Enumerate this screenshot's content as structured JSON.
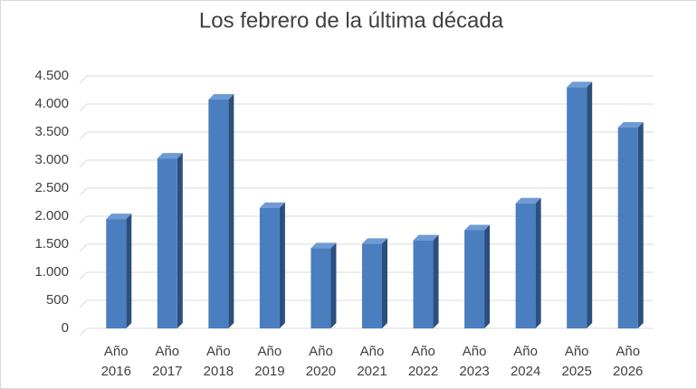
{
  "chart_data": {
    "type": "bar3d",
    "title": "Los febrero de la última década",
    "categories": [
      "Año 2016",
      "Año 2017",
      "Año 2018",
      "Año 2019",
      "Año 2020",
      "Año 2021",
      "Año 2022",
      "Año 2023",
      "Año 2024",
      "Año 2025",
      "Año 2026"
    ],
    "values": [
      1950,
      3030,
      4080,
      2150,
      1430,
      1510,
      1570,
      1750,
      2230,
      4300,
      3580
    ],
    "color": "#4a7ebf",
    "ylim": [
      0,
      4500
    ],
    "yticks": [
      0,
      500,
      {
        "value": 1000,
        "label": "1.000"
      },
      {
        "value": 1500,
        "label": "1.500"
      },
      {
        "value": 2000,
        "label": "2.000"
      },
      {
        "value": 2500,
        "label": "2.500"
      },
      {
        "value": 3000,
        "label": "3.000"
      },
      {
        "value": 3500,
        "label": "3.500"
      },
      {
        "value": 4000,
        "label": "4.000"
      },
      {
        "value": 4500,
        "label": "4.500"
      }
    ],
    "grid": true
  }
}
